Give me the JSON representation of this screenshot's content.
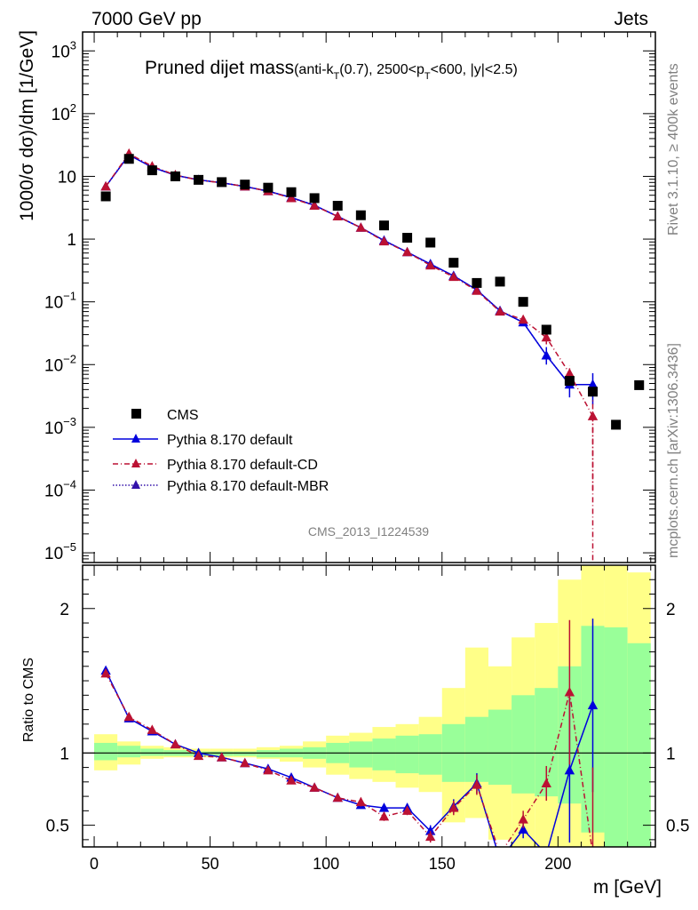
{
  "header": {
    "left": "7000 GeV pp",
    "right": "Jets"
  },
  "side_text": {
    "rivet": "Rivet 3.1.10, ≥ 400k events",
    "mcplots": "mcplots.cern.ch [arXiv:1306.3436]"
  },
  "chart_data": {
    "type": "scatter",
    "title": {
      "main": "Pruned dijet mass",
      "detail_prefix": "(anti-k",
      "detail_sub1": "T",
      "detail_mid": "(0.7), 2500<p",
      "detail_sub2": "T",
      "detail_suffix": "<600, |y|<2.5)"
    },
    "watermark": "CMS_2013_I1224539",
    "xlabel": "m [GeV]",
    "ylabel": "1000/σ dσ)/dm [1/GeV]",
    "ratio_ylabel": "Ratio to CMS",
    "xlim": [
      -5,
      242
    ],
    "ylim": [
      7e-06,
      2000
    ],
    "yscale": "log",
    "ratio_ylim": [
      0.35,
      2.3
    ],
    "x_ticks": [
      {
        "v": 0,
        "label": "0"
      },
      {
        "v": 50,
        "label": "50"
      },
      {
        "v": 100,
        "label": "100"
      },
      {
        "v": 150,
        "label": "150"
      },
      {
        "v": 200,
        "label": "200"
      }
    ],
    "y_ticks": [
      {
        "v": 1000,
        "base": "10",
        "exp": "3"
      },
      {
        "v": 100,
        "base": "10",
        "exp": "2"
      },
      {
        "v": 10,
        "base": "10",
        "exp": ""
      },
      {
        "v": 1,
        "base": "1",
        "exp": ""
      },
      {
        "v": 0.1,
        "base": "10",
        "exp": "−1"
      },
      {
        "v": 0.01,
        "base": "10",
        "exp": "−2"
      },
      {
        "v": 0.001,
        "base": "10",
        "exp": "−3"
      },
      {
        "v": 0.0001,
        "base": "10",
        "exp": "−4"
      },
      {
        "v": 1e-05,
        "base": "10",
        "exp": "−5"
      }
    ],
    "ratio_ticks": [
      {
        "v": 2,
        "label": "2"
      },
      {
        "v": 1,
        "label": "1"
      },
      {
        "v": 0.5,
        "label": "0.5"
      }
    ],
    "legend_position": "lower-left",
    "series": [
      {
        "name": "CMS",
        "style": "data",
        "color": "#000000",
        "x": [
          5,
          15,
          25,
          35,
          45,
          55,
          65,
          75,
          85,
          95,
          105,
          115,
          125,
          135,
          145,
          155,
          165,
          175,
          185,
          195,
          205,
          215,
          225,
          235
        ],
        "y": [
          4.8,
          19,
          12.5,
          10,
          8.8,
          8.1,
          7.4,
          6.6,
          5.6,
          4.5,
          3.4,
          2.4,
          1.65,
          1.05,
          0.88,
          0.42,
          0.2,
          0.21,
          0.1,
          0.036,
          0.0055,
          0.0037,
          0.0011,
          0.0047
        ]
      },
      {
        "name": "Pythia 8.170 default",
        "style": "solid",
        "color": "#0000dd",
        "x": [
          5,
          15,
          25,
          35,
          45,
          55,
          65,
          75,
          85,
          95,
          105,
          115,
          125,
          135,
          145,
          155,
          165,
          175,
          185,
          195,
          205,
          215
        ],
        "y": [
          6.9,
          22,
          14,
          10.4,
          8.8,
          7.9,
          6.9,
          5.8,
          4.6,
          3.45,
          2.3,
          1.52,
          0.95,
          0.62,
          0.4,
          0.26,
          0.155,
          0.072,
          0.047,
          0.014,
          0.0048,
          0.0048
        ],
        "err_lo": [
          0,
          0,
          0,
          0,
          0,
          0,
          0,
          0,
          0,
          0,
          0,
          0,
          0,
          0,
          0,
          0,
          0,
          0,
          0.006,
          0.004,
          0.0018,
          0.0025
        ],
        "err_hi": [
          0,
          0,
          0,
          0,
          0,
          0,
          0,
          0,
          0,
          0,
          0,
          0,
          0,
          0,
          0,
          0,
          0,
          0,
          0.006,
          0.005,
          0.0025,
          0.0025
        ],
        "ratio": [
          1.57,
          1.24,
          1.15,
          1.06,
          1.0,
          0.97,
          0.93,
          0.89,
          0.83,
          0.76,
          0.69,
          0.64,
          0.62,
          0.62,
          0.46,
          0.63,
          0.79,
          0.26,
          0.47,
          0.3,
          0.88,
          1.33
        ],
        "ratio_err": [
          0,
          0,
          0,
          0,
          0,
          0,
          0,
          0,
          0,
          0,
          0,
          0,
          0,
          0.03,
          0.04,
          0.05,
          0.07,
          0.0,
          0.06,
          0.0,
          0.5,
          0.6
        ]
      },
      {
        "name": "Pythia 8.170 default-CD",
        "style": "dashdot",
        "color": "#bb1133",
        "x": [
          5,
          15,
          25,
          35,
          45,
          55,
          65,
          75,
          85,
          95,
          105,
          115,
          125,
          135,
          145,
          155,
          165,
          175,
          185,
          195,
          205,
          215
        ],
        "y": [
          6.9,
          23,
          14.5,
          10.5,
          8.7,
          7.9,
          6.9,
          5.8,
          4.5,
          3.4,
          2.3,
          1.52,
          0.92,
          0.62,
          0.38,
          0.25,
          0.15,
          0.07,
          0.052,
          0.027,
          0.0072,
          0.0015
        ],
        "err_lo": [
          0,
          0,
          0,
          0,
          0,
          0,
          0,
          0,
          0,
          0,
          0,
          0,
          0,
          0,
          0,
          0,
          0,
          0,
          0.006,
          0.006,
          0.0025,
          0.0014
        ],
        "err_hi": [
          0,
          0,
          0,
          0,
          0,
          0,
          0,
          0,
          0,
          0,
          0,
          0,
          0,
          0,
          0,
          0,
          0,
          0,
          0.006,
          0.006,
          0.0025,
          0.0014
        ],
        "ratio": [
          1.55,
          1.25,
          1.16,
          1.06,
          0.98,
          0.97,
          0.93,
          0.88,
          0.81,
          0.76,
          0.69,
          0.66,
          0.56,
          0.6,
          0.42,
          0.62,
          0.78,
          0.3,
          0.54,
          0.79,
          1.42,
          0.3
        ],
        "ratio_err": [
          0,
          0,
          0,
          0,
          0,
          0,
          0,
          0,
          0,
          0,
          0,
          0.03,
          0.03,
          0.03,
          0.04,
          0.05,
          0.07,
          0.0,
          0.06,
          0.12,
          0.5,
          0.6
        ]
      },
      {
        "name": "Pythia 8.170 default-MBR",
        "style": "dotted",
        "color": "#3311aa",
        "x": [
          5,
          15,
          25,
          35,
          45,
          55,
          65,
          75,
          85,
          95,
          105,
          115,
          125,
          135,
          145,
          155,
          165,
          175,
          185,
          195,
          205,
          215
        ],
        "y": [
          6.9,
          22,
          14,
          10.4,
          8.8,
          7.9,
          6.9,
          5.8,
          4.6,
          3.45,
          2.3,
          1.52,
          0.95,
          0.62,
          0.4,
          0.26,
          0.155,
          0.072,
          0.047,
          0.014,
          0.0048,
          0.0048
        ]
      }
    ],
    "ratio_bands": {
      "x_edges": [
        0,
        10,
        20,
        30,
        40,
        50,
        60,
        70,
        80,
        90,
        100,
        110,
        120,
        130,
        140,
        150,
        160,
        170,
        180,
        190,
        200,
        210,
        220,
        230,
        240
      ],
      "green_lo": [
        0.95,
        0.97,
        0.98,
        0.98,
        0.98,
        0.98,
        0.98,
        0.97,
        0.97,
        0.96,
        0.93,
        0.9,
        0.88,
        0.86,
        0.85,
        0.8,
        0.8,
        0.78,
        0.72,
        0.7,
        0.65,
        0.45,
        0.35,
        0.35
      ],
      "green_hi": [
        1.07,
        1.05,
        1.03,
        1.02,
        1.01,
        1.01,
        1.01,
        1.02,
        1.03,
        1.04,
        1.07,
        1.08,
        1.1,
        1.12,
        1.13,
        1.2,
        1.25,
        1.3,
        1.4,
        1.45,
        1.6,
        1.88,
        1.87,
        1.76
      ],
      "yellow_lo": [
        0.88,
        0.92,
        0.96,
        0.97,
        0.97,
        0.97,
        0.97,
        0.96,
        0.94,
        0.9,
        0.85,
        0.82,
        0.8,
        0.76,
        0.73,
        0.52,
        0.55,
        0.4,
        0.35,
        0.35,
        0.35,
        0.35,
        0.35,
        0.35
      ],
      "yellow_hi": [
        1.13,
        1.08,
        1.05,
        1.04,
        1.03,
        1.03,
        1.03,
        1.04,
        1.05,
        1.08,
        1.12,
        1.14,
        1.18,
        1.2,
        1.25,
        1.45,
        1.73,
        1.6,
        1.8,
        1.9,
        2.2,
        2.35,
        2.35,
        2.25
      ]
    }
  }
}
